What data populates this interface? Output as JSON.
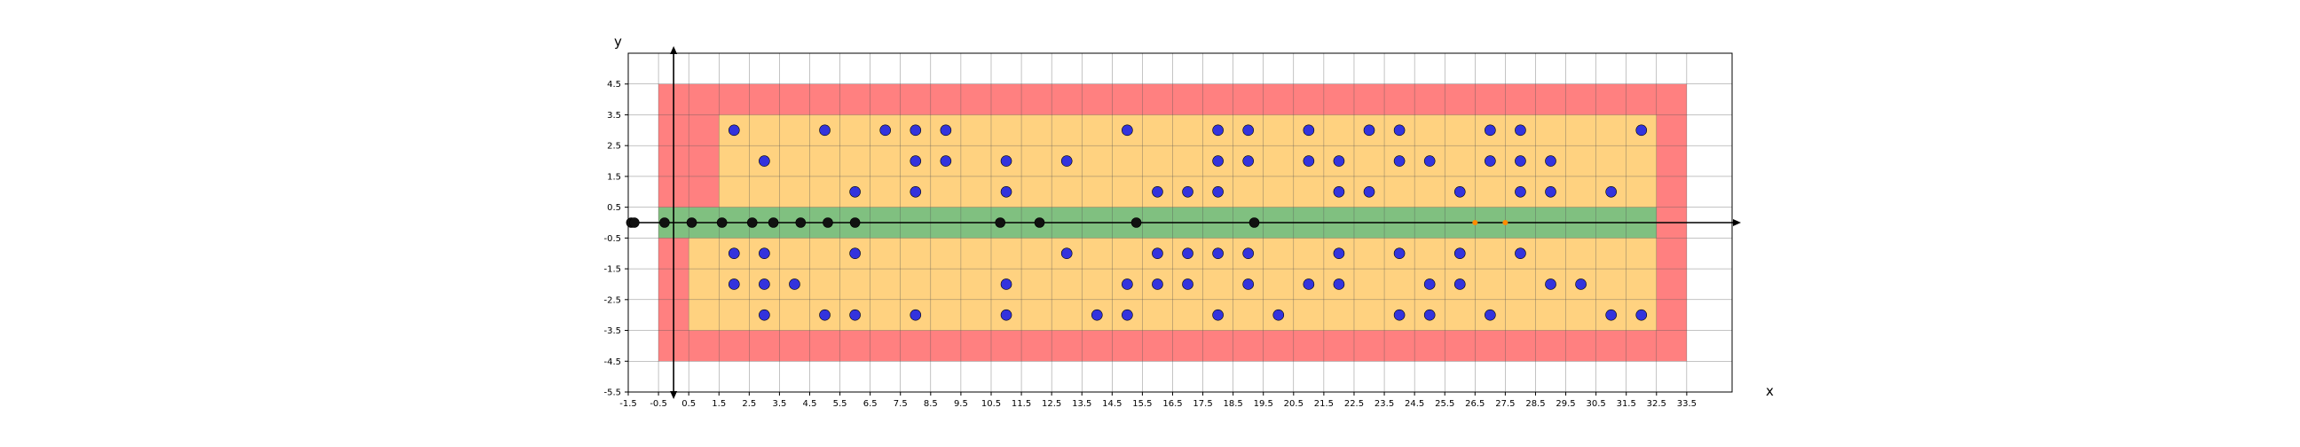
{
  "chart_data": {
    "type": "scatter",
    "xlabel": "x",
    "ylabel": "y",
    "xlim": [
      -1.5,
      35
    ],
    "ylim": [
      -5.5,
      5.5
    ],
    "grid": true,
    "xticks": [
      -1.5,
      -0.5,
      0.5,
      1.5,
      2.5,
      3.5,
      4.5,
      5.5,
      6.5,
      7.5,
      8.5,
      9.5,
      10.5,
      11.5,
      12.5,
      13.5,
      14.5,
      15.5,
      16.5,
      17.5,
      18.5,
      19.5,
      20.5,
      21.5,
      22.5,
      23.5,
      24.5,
      25.5,
      26.5,
      27.5,
      28.5,
      29.5,
      30.5,
      31.5,
      32.5,
      33.5
    ],
    "xtick_labels": [
      "-1.5",
      "-0.5",
      "0.5",
      "1.5",
      "2.5",
      "3.5",
      "4.5",
      "5.5",
      "6.5",
      "7.5",
      "8.5",
      "9.5",
      "10.5",
      "11.5",
      "12.5",
      "13.5",
      "14.5",
      "15.5",
      "16.5",
      "17.5",
      "18.5",
      "19.5",
      "20.5",
      "21.5",
      "22.5",
      "23.5",
      "24.5",
      "25.5",
      "26.5",
      "27.5",
      "28.5",
      "29.5",
      "30.5",
      "31.5",
      "32.5",
      "33.5"
    ],
    "yticks": [
      -5.5,
      -4.5,
      -3.5,
      -2.5,
      -1.5,
      -0.5,
      0.5,
      1.5,
      2.5,
      3.5,
      4.5
    ],
    "ytick_labels": [
      "-5.5",
      "-4.5",
      "-3.5",
      "-2.5",
      "-1.5",
      "-0.5",
      "0.5",
      "1.5",
      "2.5",
      "3.5",
      "4.5"
    ],
    "regions": [
      {
        "color": "#ff8080",
        "x": [
          -0.5,
          33.5
        ],
        "y": [
          -4.5,
          4.5
        ]
      },
      {
        "color": "#ffd280",
        "x": [
          0.5,
          32.5
        ],
        "y": [
          -3.5,
          -0.5
        ]
      },
      {
        "color": "#ffd280",
        "x": [
          1.5,
          32.5
        ],
        "y": [
          0.5,
          3.5
        ]
      },
      {
        "color": "#80c080",
        "x": [
          -0.5,
          32.5
        ],
        "y": [
          -0.5,
          0.5
        ]
      }
    ],
    "series": [
      {
        "color": "#3333dd",
        "points": [
          [
            2,
            3
          ],
          [
            5,
            3
          ],
          [
            7,
            3
          ],
          [
            8,
            3
          ],
          [
            9,
            3
          ],
          [
            15,
            3
          ],
          [
            18,
            3
          ],
          [
            19,
            3
          ],
          [
            21,
            3
          ],
          [
            23,
            3
          ],
          [
            24,
            3
          ],
          [
            27,
            3
          ],
          [
            28,
            3
          ],
          [
            32,
            3
          ],
          [
            3,
            2
          ],
          [
            8,
            2
          ],
          [
            9,
            2
          ],
          [
            11,
            2
          ],
          [
            13,
            2
          ],
          [
            18,
            2
          ],
          [
            19,
            2
          ],
          [
            21,
            2
          ],
          [
            22,
            2
          ],
          [
            24,
            2
          ],
          [
            25,
            2
          ],
          [
            27,
            2
          ],
          [
            28,
            2
          ],
          [
            29,
            2
          ],
          [
            6,
            1
          ],
          [
            8,
            1
          ],
          [
            11,
            1
          ],
          [
            16,
            1
          ],
          [
            17,
            1
          ],
          [
            18,
            1
          ],
          [
            22,
            1
          ],
          [
            23,
            1
          ],
          [
            26,
            1
          ],
          [
            28,
            1
          ],
          [
            29,
            1
          ],
          [
            31,
            1
          ],
          [
            2,
            -1
          ],
          [
            3,
            -1
          ],
          [
            6,
            -1
          ],
          [
            13,
            -1
          ],
          [
            16,
            -1
          ],
          [
            17,
            -1
          ],
          [
            18,
            -1
          ],
          [
            19,
            -1
          ],
          [
            22,
            -1
          ],
          [
            24,
            -1
          ],
          [
            26,
            -1
          ],
          [
            28,
            -1
          ],
          [
            2,
            -2
          ],
          [
            3,
            -2
          ],
          [
            4,
            -2
          ],
          [
            11,
            -2
          ],
          [
            15,
            -2
          ],
          [
            16,
            -2
          ],
          [
            17,
            -2
          ],
          [
            19,
            -2
          ],
          [
            21,
            -2
          ],
          [
            22,
            -2
          ],
          [
            25,
            -2
          ],
          [
            26,
            -2
          ],
          [
            29,
            -2
          ],
          [
            30,
            -2
          ],
          [
            3,
            -3
          ],
          [
            5,
            -3
          ],
          [
            6,
            -3
          ],
          [
            8,
            -3
          ],
          [
            11,
            -3
          ],
          [
            14,
            -3
          ],
          [
            15,
            -3
          ],
          [
            18,
            -3
          ],
          [
            20,
            -3
          ],
          [
            24,
            -3
          ],
          [
            25,
            -3
          ],
          [
            27,
            -3
          ],
          [
            31,
            -3
          ],
          [
            32,
            -3
          ]
        ]
      },
      {
        "color": "#111111",
        "points": [
          [
            -1.4,
            0
          ],
          [
            -1.3,
            0
          ],
          [
            -0.3,
            0
          ],
          [
            0.6,
            0
          ],
          [
            1.6,
            0
          ],
          [
            2.6,
            0
          ],
          [
            3.3,
            0
          ],
          [
            4.2,
            0
          ],
          [
            5.1,
            0
          ],
          [
            6.0,
            0
          ],
          [
            10.8,
            0
          ],
          [
            12.1,
            0
          ],
          [
            15.3,
            0
          ],
          [
            19.2,
            0
          ]
        ]
      },
      {
        "color": "#ff8c00",
        "points": [
          [
            26.5,
            0
          ],
          [
            27.5,
            0
          ]
        ]
      }
    ]
  }
}
